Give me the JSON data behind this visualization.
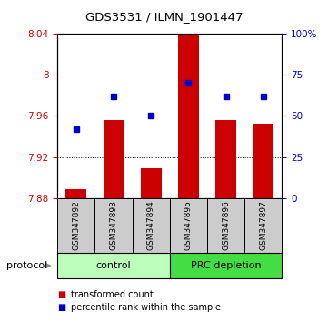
{
  "title": "GDS3531 / ILMN_1901447",
  "samples": [
    "GSM347892",
    "GSM347893",
    "GSM347894",
    "GSM347895",
    "GSM347896",
    "GSM347897"
  ],
  "bar_values": [
    7.889,
    7.956,
    7.909,
    8.04,
    7.956,
    7.952
  ],
  "bar_base": 7.88,
  "blue_values_pct": [
    42,
    62,
    50,
    70,
    62,
    62
  ],
  "left_ylim": [
    7.88,
    8.04
  ],
  "left_yticks": [
    7.88,
    7.92,
    7.96,
    8.0,
    8.04
  ],
  "left_yticklabels": [
    "7.88",
    "7.92",
    "7.96",
    "8",
    "8.04"
  ],
  "right_ylim": [
    0,
    100
  ],
  "right_yticks": [
    0,
    25,
    50,
    75,
    100
  ],
  "right_yticklabels": [
    "0",
    "25",
    "50",
    "75",
    "100%"
  ],
  "bar_color": "#cc0000",
  "blue_color": "#0000cc",
  "control_color": "#bbffbb",
  "prc_color": "#44dd44",
  "sample_bg": "#cccccc",
  "dotted_ticks": [
    7.92,
    7.96,
    8.0
  ],
  "legend_items": [
    "transformed count",
    "percentile rank within the sample"
  ]
}
